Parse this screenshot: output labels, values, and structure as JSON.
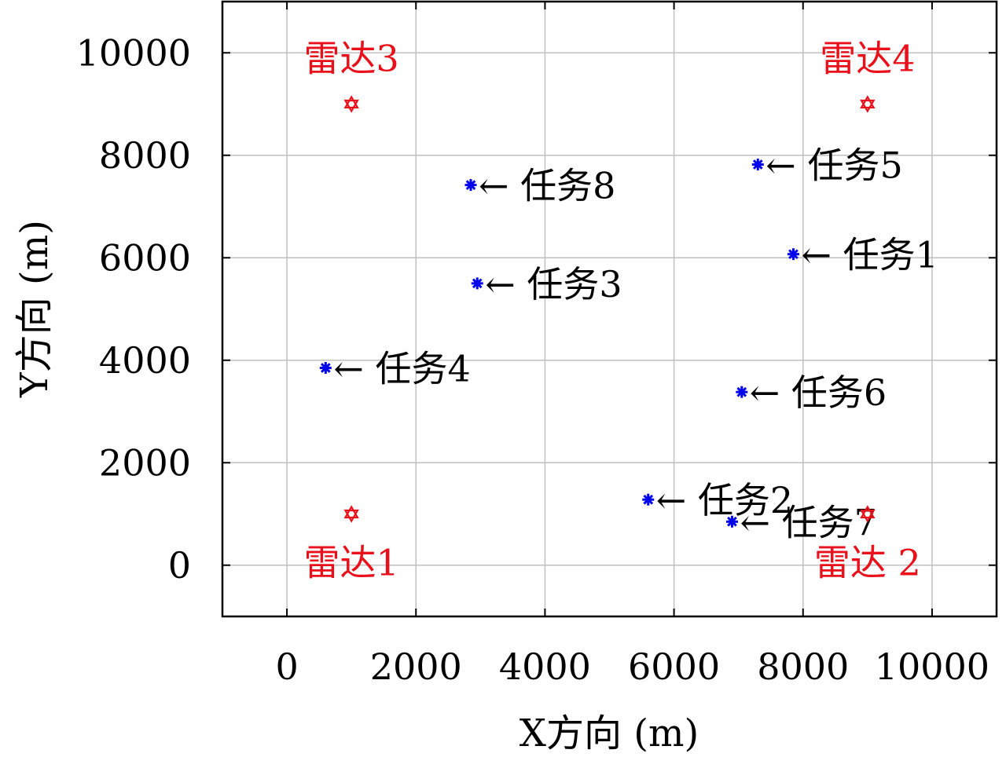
{
  "chart_data": {
    "type": "scatter",
    "title": "",
    "xlabel": "X方向 (m)",
    "ylabel": "Y方向 (m)",
    "xlim": [
      -1000,
      11000
    ],
    "ylim": [
      -1000,
      11000
    ],
    "xticks": [
      0,
      2000,
      4000,
      6000,
      8000,
      10000
    ],
    "yticks": [
      0,
      2000,
      4000,
      6000,
      8000,
      10000
    ],
    "x_tick_labels": [
      "0",
      "2000",
      "4000",
      "6000",
      "8000",
      "10000"
    ],
    "y_tick_labels": [
      "0",
      "2000",
      "4000",
      "6000",
      "8000",
      "10000"
    ],
    "grid": true,
    "colors": {
      "task": "#0000ee",
      "radar": "#e8111b",
      "grid": "#c0c0c0"
    },
    "tasks": [
      {
        "label": "任务1",
        "x": 7850,
        "y": 6070,
        "arrow": "←"
      },
      {
        "label": "任务2",
        "x": 5600,
        "y": 1280,
        "arrow": "←"
      },
      {
        "label": "任务3",
        "x": 2950,
        "y": 5500,
        "arrow": "←"
      },
      {
        "label": "任务4",
        "x": 600,
        "y": 3850,
        "arrow": "←"
      },
      {
        "label": "任务5",
        "x": 7300,
        "y": 7820,
        "arrow": "←"
      },
      {
        "label": "任务6",
        "x": 7050,
        "y": 3380,
        "arrow": "←"
      },
      {
        "label": "任务7",
        "x": 6900,
        "y": 850,
        "arrow": "←"
      },
      {
        "label": "任务8",
        "x": 2850,
        "y": 7420,
        "arrow": "←"
      }
    ],
    "radars": [
      {
        "label": "雷达1",
        "x": 1000,
        "y": 1000
      },
      {
        "label": "雷达 2",
        "x": 9000,
        "y": 1000
      },
      {
        "label": "雷达3",
        "x": 1000,
        "y": 9000
      },
      {
        "label": "雷达4",
        "x": 9000,
        "y": 9000
      }
    ]
  }
}
